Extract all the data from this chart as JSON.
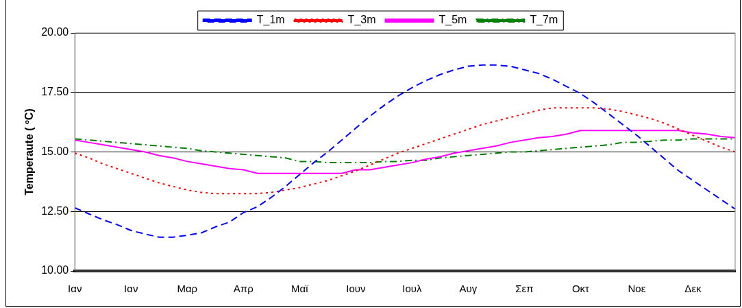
{
  "chart_data": {
    "type": "line",
    "ylabel": "Temperaute ( ºC)",
    "categories": [
      "Ιαν",
      null,
      null,
      null,
      "Ιαν",
      null,
      null,
      null,
      "Μαρ",
      null,
      null,
      null,
      "Απρ",
      null,
      null,
      null,
      "Μαϊ",
      null,
      null,
      null,
      "Ιουν",
      null,
      null,
      null,
      "Ιουλ",
      null,
      null,
      null,
      "Αυγ",
      null,
      null,
      null,
      "Σεπ",
      null,
      null,
      null,
      "Οκτ",
      null,
      null,
      null,
      "Νοε",
      null,
      null,
      null,
      "Δεκ",
      null,
      null,
      null
    ],
    "series": [
      {
        "name": "T_1m",
        "color": "#0000ff",
        "line_style": "dashed",
        "values": [
          12.65,
          12.4,
          12.15,
          11.95,
          11.7,
          11.55,
          11.42,
          11.42,
          11.5,
          11.6,
          11.85,
          12.05,
          12.45,
          12.7,
          13.1,
          13.55,
          14.05,
          14.55,
          15.0,
          15.5,
          16.0,
          16.5,
          16.95,
          17.35,
          17.7,
          18.0,
          18.25,
          18.45,
          18.6,
          18.65,
          18.65,
          18.6,
          18.45,
          18.3,
          18.05,
          17.75,
          17.45,
          17.05,
          16.6,
          16.15,
          15.7,
          15.2,
          14.7,
          14.2,
          13.8,
          13.4,
          13.0,
          12.6
        ]
      },
      {
        "name": "T_3m",
        "color": "#ff0000",
        "line_style": "dotted",
        "values": [
          14.95,
          14.75,
          14.5,
          14.3,
          14.1,
          13.9,
          13.7,
          13.55,
          13.4,
          13.3,
          13.25,
          13.25,
          13.25,
          13.25,
          13.3,
          13.4,
          13.5,
          13.65,
          13.8,
          14.0,
          14.2,
          14.45,
          14.7,
          14.95,
          15.15,
          15.35,
          15.55,
          15.75,
          15.95,
          16.15,
          16.3,
          16.45,
          16.6,
          16.75,
          16.85,
          16.85,
          16.85,
          16.85,
          16.8,
          16.7,
          16.55,
          16.4,
          16.2,
          15.95,
          15.7,
          15.45,
          15.2,
          15.0
        ]
      },
      {
        "name": "T_5m",
        "color": "#ff00ff",
        "line_style": "solid",
        "values": [
          15.5,
          15.4,
          15.3,
          15.2,
          15.1,
          15.0,
          14.85,
          14.75,
          14.6,
          14.5,
          14.4,
          14.3,
          14.25,
          14.1,
          14.1,
          14.1,
          14.1,
          14.1,
          14.1,
          14.1,
          14.25,
          14.25,
          14.35,
          14.45,
          14.55,
          14.7,
          14.8,
          14.95,
          15.05,
          15.15,
          15.25,
          15.4,
          15.5,
          15.6,
          15.65,
          15.75,
          15.9,
          15.9,
          15.9,
          15.9,
          15.9,
          15.9,
          15.9,
          15.9,
          15.8,
          15.75,
          15.65,
          15.6
        ]
      },
      {
        "name": "T_7m",
        "color": "#008000",
        "line_style": "dashdot",
        "values": [
          15.55,
          15.5,
          15.45,
          15.4,
          15.35,
          15.3,
          15.25,
          15.2,
          15.15,
          15.05,
          15.0,
          14.95,
          14.9,
          14.85,
          14.8,
          14.75,
          14.6,
          14.6,
          14.55,
          14.55,
          14.55,
          14.55,
          14.6,
          14.6,
          14.65,
          14.65,
          14.75,
          14.8,
          14.85,
          14.9,
          14.95,
          15.0,
          15.0,
          15.05,
          15.1,
          15.15,
          15.2,
          15.25,
          15.3,
          15.4,
          15.4,
          15.45,
          15.5,
          15.5,
          15.55,
          15.55,
          15.55,
          15.55
        ]
      }
    ],
    "ylim": [
      10,
      20
    ],
    "yticks": [
      {
        "value": 10,
        "label": "10.00"
      },
      {
        "value": 12.5,
        "label": "12.50"
      },
      {
        "value": 15,
        "label": "15.00"
      },
      {
        "value": 17.5,
        "label": "17.50"
      },
      {
        "value": 20,
        "label": "20.00"
      }
    ],
    "grid": "y",
    "legend": "top",
    "marker": "none"
  }
}
